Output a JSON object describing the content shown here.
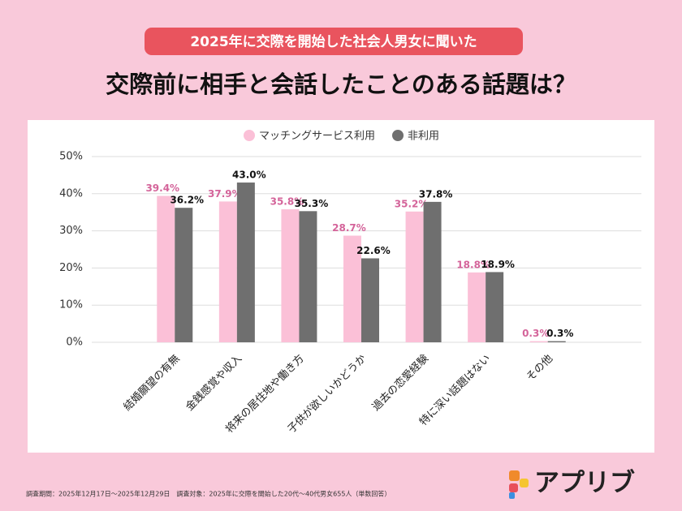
{
  "chart_data": {
    "type": "bar",
    "subtitle": "2025年に交際を開始した社会人男女に聞いた",
    "title": "交際前に相手と会話したことのある話題は？",
    "categories": [
      "結婚願望の有無",
      "金銭感覚や収入",
      "将来の居住地や働き方",
      "子供が欲しいかどうか",
      "過去の恋愛経験",
      "特に深い話題はない",
      "その他"
    ],
    "series": [
      {
        "name": "マッチングサービス利用",
        "color": "#fbc0d7",
        "label_color": "#d4649a",
        "values": [
          39.4,
          37.9,
          35.8,
          28.7,
          35.2,
          18.8,
          0.3
        ],
        "value_labels": [
          "39.4%",
          "37.9%",
          "35.8%",
          "28.7%",
          "35.2%",
          "18.8%",
          "0.3%"
        ]
      },
      {
        "name": "非利用",
        "color": "#6f6f6f",
        "label_color": "#111111",
        "values": [
          36.2,
          43.0,
          35.3,
          22.6,
          37.8,
          18.9,
          0.3
        ],
        "value_labels": [
          "36.2%",
          "43.0%",
          "35.3%",
          "22.6%",
          "37.8%",
          "18.9%",
          "0.3%"
        ]
      }
    ],
    "ylim": [
      0,
      50
    ],
    "yticks": [
      {
        "value": 0,
        "label": "0%"
      },
      {
        "value": 10,
        "label": "10%"
      },
      {
        "value": 20,
        "label": "20%"
      },
      {
        "value": 30,
        "label": "30%"
      },
      {
        "value": 40,
        "label": "40%"
      },
      {
        "value": 50,
        "label": "50%"
      }
    ],
    "grid": true,
    "legend": "top",
    "note": "調査期間：2025年12月17日～2025年12月29日　調査対象：2025年に交際を開始した20代～40代男女655人（単数回答）"
  },
  "logo": {
    "text": "アプリブ"
  }
}
